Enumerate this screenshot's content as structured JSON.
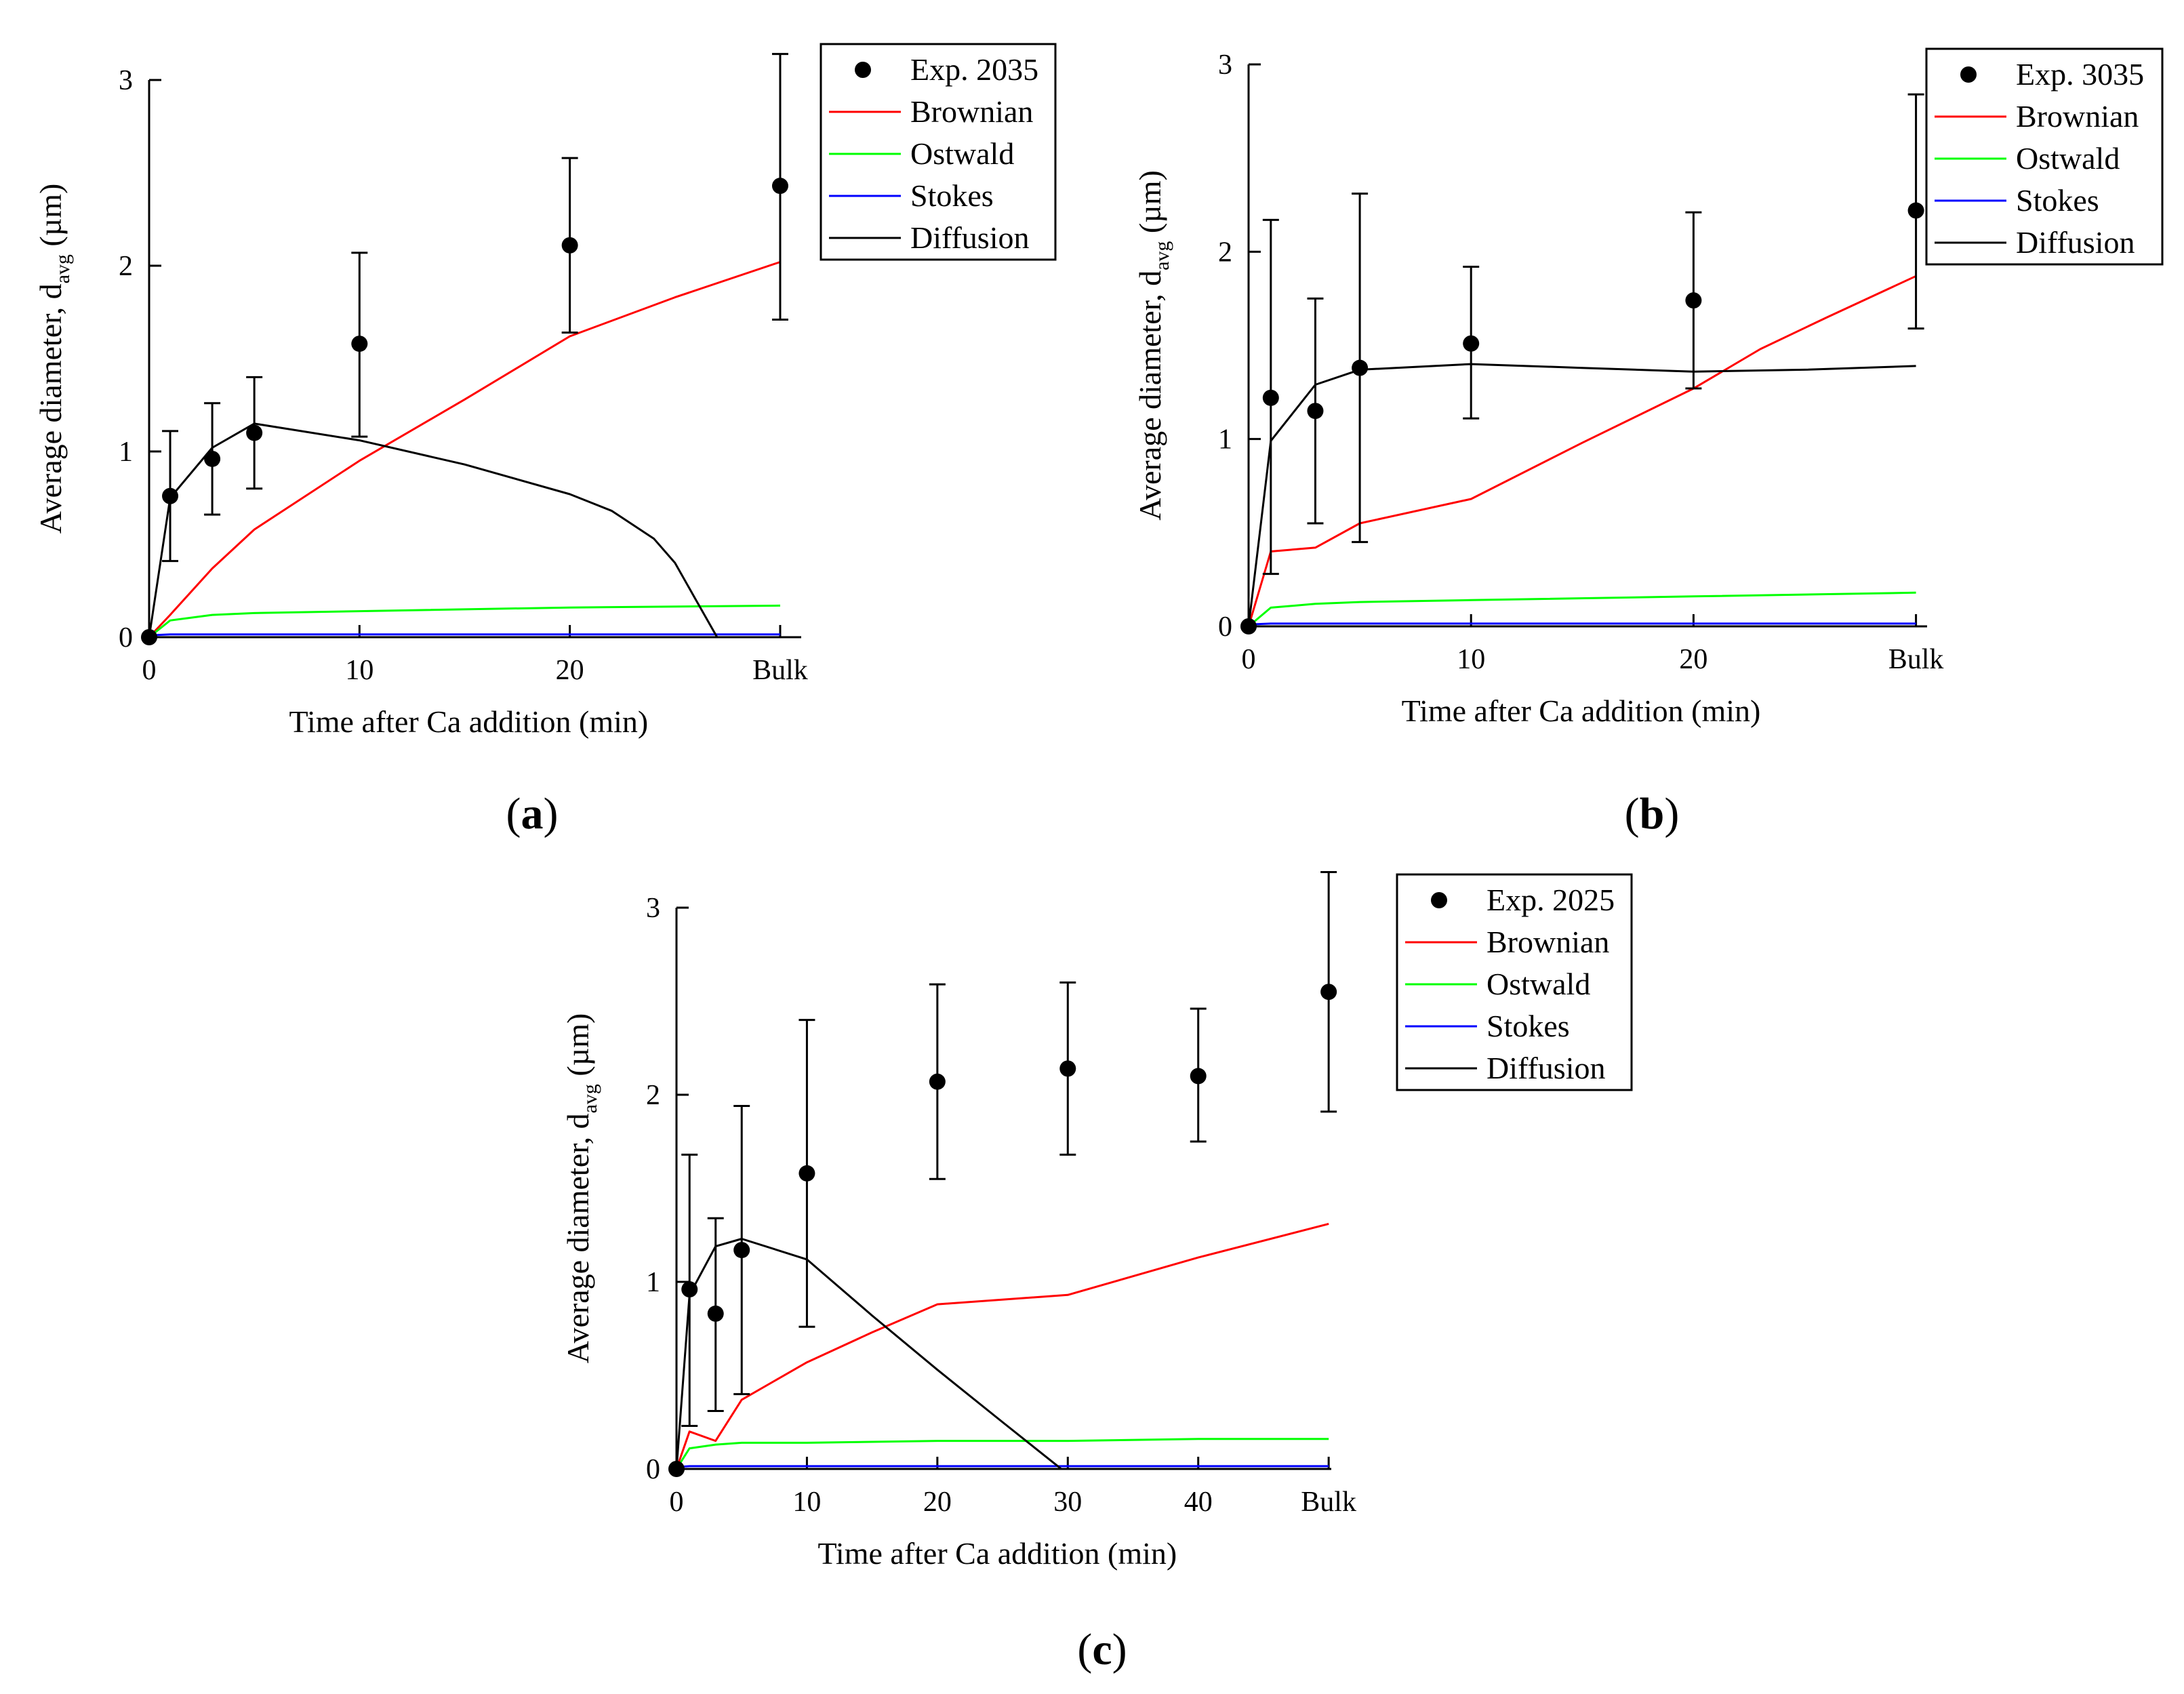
{
  "chart_data": [
    {
      "id": "a",
      "type": "line",
      "caption": "a",
      "xlabel": "Time after Ca addition (min)",
      "ylabel": {
        "main": "Average diameter, d",
        "sub": "avg",
        "unit": " (µm)"
      },
      "xlim": [
        0,
        31
      ],
      "ylim": [
        0,
        3
      ],
      "xticks": [
        {
          "v": 0,
          "label": "0"
        },
        {
          "v": 10,
          "label": "10"
        },
        {
          "v": 20,
          "label": "20"
        },
        {
          "v": 30,
          "label": "Bulk"
        }
      ],
      "yticks": [
        {
          "v": 0,
          "label": "0"
        },
        {
          "v": 1,
          "label": "1"
        },
        {
          "v": 2,
          "label": "2"
        },
        {
          "v": 3,
          "label": "3"
        }
      ],
      "experiment": {
        "name": "Exp. 2035",
        "points": [
          {
            "x": 0,
            "y": 0,
            "err_low": 0,
            "err_high": 0
          },
          {
            "x": 1,
            "y": 0.76,
            "err_low": 0.41,
            "err_high": 1.11
          },
          {
            "x": 3,
            "y": 0.96,
            "err_low": 0.66,
            "err_high": 1.26
          },
          {
            "x": 5,
            "y": 1.1,
            "err_low": 0.8,
            "err_high": 1.4
          },
          {
            "x": 10,
            "y": 1.58,
            "err_low": 1.08,
            "err_high": 2.07
          },
          {
            "x": 20,
            "y": 2.11,
            "err_low": 1.64,
            "err_high": 2.58
          },
          {
            "x": 30,
            "y": 2.43,
            "err_low": 1.71,
            "err_high": 3.14
          }
        ]
      },
      "series": [
        {
          "name": "Brownian",
          "color": "#ff0000",
          "points": [
            [
              0,
              0
            ],
            [
              1,
              0.12
            ],
            [
              3,
              0.37
            ],
            [
              5,
              0.58
            ],
            [
              10,
              0.95
            ],
            [
              15,
              1.28
            ],
            [
              20,
              1.62
            ],
            [
              25,
              1.83
            ],
            [
              30,
              2.02
            ]
          ]
        },
        {
          "name": "Ostwald",
          "color": "#00ff00",
          "points": [
            [
              0,
              0
            ],
            [
              1,
              0.09
            ],
            [
              3,
              0.12
            ],
            [
              5,
              0.13
            ],
            [
              10,
              0.14
            ],
            [
              20,
              0.16
            ],
            [
              30,
              0.17
            ]
          ]
        },
        {
          "name": "Stokes",
          "color": "#0000ff",
          "points": [
            [
              0,
              0.01
            ],
            [
              1,
              0.015
            ],
            [
              30,
              0.015
            ]
          ]
        },
        {
          "name": "Diffusion",
          "color": "#000000",
          "points": [
            [
              0,
              0
            ],
            [
              1,
              0.75
            ],
            [
              3,
              1.02
            ],
            [
              5,
              1.15
            ],
            [
              10,
              1.06
            ],
            [
              15,
              0.93
            ],
            [
              20,
              0.77
            ],
            [
              22,
              0.68
            ],
            [
              24,
              0.53
            ],
            [
              25,
              0.4
            ],
            [
              26,
              0.2
            ],
            [
              27,
              0
            ]
          ]
        }
      ]
    },
    {
      "id": "b",
      "type": "line",
      "caption": "b",
      "xlabel": "Time after Ca addition (min)",
      "ylabel": {
        "main": "Average diameter, d",
        "sub": "avg",
        "unit": " (µm)"
      },
      "xlim": [
        0,
        30.5
      ],
      "ylim": [
        0,
        3
      ],
      "xticks": [
        {
          "v": 0,
          "label": "0"
        },
        {
          "v": 10,
          "label": "10"
        },
        {
          "v": 20,
          "label": "20"
        },
        {
          "v": 30,
          "label": "Bulk"
        }
      ],
      "yticks": [
        {
          "v": 0,
          "label": "0"
        },
        {
          "v": 1,
          "label": "1"
        },
        {
          "v": 2,
          "label": "2"
        },
        {
          "v": 3,
          "label": "3"
        }
      ],
      "experiment": {
        "name": "Exp. 3035",
        "points": [
          {
            "x": 0,
            "y": 0,
            "err_low": 0,
            "err_high": 0
          },
          {
            "x": 1,
            "y": 1.22,
            "err_low": 0.28,
            "err_high": 2.17
          },
          {
            "x": 3,
            "y": 1.15,
            "err_low": 0.55,
            "err_high": 1.75
          },
          {
            "x": 5,
            "y": 1.38,
            "err_low": 0.45,
            "err_high": 2.31
          },
          {
            "x": 10,
            "y": 1.51,
            "err_low": 1.11,
            "err_high": 1.92
          },
          {
            "x": 20,
            "y": 1.74,
            "err_low": 1.27,
            "err_high": 2.21
          },
          {
            "x": 30,
            "y": 2.22,
            "err_low": 1.59,
            "err_high": 2.84
          }
        ]
      },
      "series": [
        {
          "name": "Brownian",
          "color": "#ff0000",
          "points": [
            [
              0,
              0
            ],
            [
              1,
              0.4
            ],
            [
              3,
              0.42
            ],
            [
              5,
              0.55
            ],
            [
              10,
              0.68
            ],
            [
              15,
              0.98
            ],
            [
              20,
              1.27
            ],
            [
              23,
              1.48
            ],
            [
              26,
              1.65
            ],
            [
              30,
              1.87
            ]
          ]
        },
        {
          "name": "Ostwald",
          "color": "#00ff00",
          "points": [
            [
              0,
              0
            ],
            [
              1,
              0.1
            ],
            [
              3,
              0.12
            ],
            [
              5,
              0.13
            ],
            [
              10,
              0.14
            ],
            [
              20,
              0.16
            ],
            [
              30,
              0.18
            ]
          ]
        },
        {
          "name": "Stokes",
          "color": "#0000ff",
          "points": [
            [
              0,
              0.01
            ],
            [
              1,
              0.015
            ],
            [
              30,
              0.015
            ]
          ]
        },
        {
          "name": "Diffusion",
          "color": "#000000",
          "points": [
            [
              0,
              0
            ],
            [
              1,
              0.99
            ],
            [
              3,
              1.29
            ],
            [
              5,
              1.37
            ],
            [
              10,
              1.4
            ],
            [
              15,
              1.38
            ],
            [
              20,
              1.36
            ],
            [
              25,
              1.37
            ],
            [
              30,
              1.39
            ]
          ]
        }
      ]
    },
    {
      "id": "c",
      "type": "line",
      "caption": "c",
      "xlabel": "Time after Ca addition (min)",
      "ylabel": {
        "main": "Average diameter, d",
        "sub": "avg",
        "unit": " (µm)"
      },
      "xlim": [
        0,
        50.2
      ],
      "ylim": [
        0,
        3
      ],
      "xticks": [
        {
          "v": 0,
          "label": "0"
        },
        {
          "v": 10,
          "label": "10"
        },
        {
          "v": 20,
          "label": "20"
        },
        {
          "v": 30,
          "label": "30"
        },
        {
          "v": 40,
          "label": "40"
        },
        {
          "v": 50,
          "label": "Bulk"
        }
      ],
      "yticks": [
        {
          "v": 0,
          "label": "0"
        },
        {
          "v": 1,
          "label": "1"
        },
        {
          "v": 2,
          "label": "2"
        },
        {
          "v": 3,
          "label": "3"
        }
      ],
      "experiment": {
        "name": "Exp. 2025",
        "points": [
          {
            "x": 0,
            "y": 0,
            "err_low": 0,
            "err_high": 0
          },
          {
            "x": 1,
            "y": 0.96,
            "err_low": 0.23,
            "err_high": 1.68
          },
          {
            "x": 3,
            "y": 0.83,
            "err_low": 0.31,
            "err_high": 1.34
          },
          {
            "x": 5,
            "y": 1.17,
            "err_low": 0.4,
            "err_high": 1.94
          },
          {
            "x": 10,
            "y": 1.58,
            "err_low": 0.76,
            "err_high": 2.4
          },
          {
            "x": 20,
            "y": 2.07,
            "err_low": 1.55,
            "err_high": 2.59
          },
          {
            "x": 30,
            "y": 2.14,
            "err_low": 1.68,
            "err_high": 2.6
          },
          {
            "x": 40,
            "y": 2.1,
            "err_low": 1.75,
            "err_high": 2.46
          },
          {
            "x": 50,
            "y": 2.55,
            "err_low": 1.91,
            "err_high": 3.19
          }
        ]
      },
      "series": [
        {
          "name": "Brownian",
          "color": "#ff0000",
          "points": [
            [
              0,
              0
            ],
            [
              1,
              0.2
            ],
            [
              3,
              0.15
            ],
            [
              5,
              0.37
            ],
            [
              10,
              0.57
            ],
            [
              15,
              0.73
            ],
            [
              20,
              0.88
            ],
            [
              30,
              0.93
            ],
            [
              40,
              1.13
            ],
            [
              50,
              1.31
            ]
          ]
        },
        {
          "name": "Ostwald",
          "color": "#00ff00",
          "points": [
            [
              0,
              0
            ],
            [
              1,
              0.11
            ],
            [
              3,
              0.13
            ],
            [
              5,
              0.14
            ],
            [
              10,
              0.14
            ],
            [
              20,
              0.15
            ],
            [
              30,
              0.15
            ],
            [
              40,
              0.16
            ],
            [
              50,
              0.16
            ]
          ]
        },
        {
          "name": "Stokes",
          "color": "#0000ff",
          "points": [
            [
              0,
              0.01
            ],
            [
              1,
              0.015
            ],
            [
              50,
              0.015
            ]
          ]
        },
        {
          "name": "Diffusion",
          "color": "#000000",
          "points": [
            [
              0,
              0
            ],
            [
              1,
              0.93
            ],
            [
              3,
              1.19
            ],
            [
              5,
              1.23
            ],
            [
              10,
              1.12
            ],
            [
              15,
              0.82
            ],
            [
              20,
              0.53
            ],
            [
              25,
              0.25
            ],
            [
              29.5,
              0
            ]
          ]
        }
      ]
    }
  ]
}
